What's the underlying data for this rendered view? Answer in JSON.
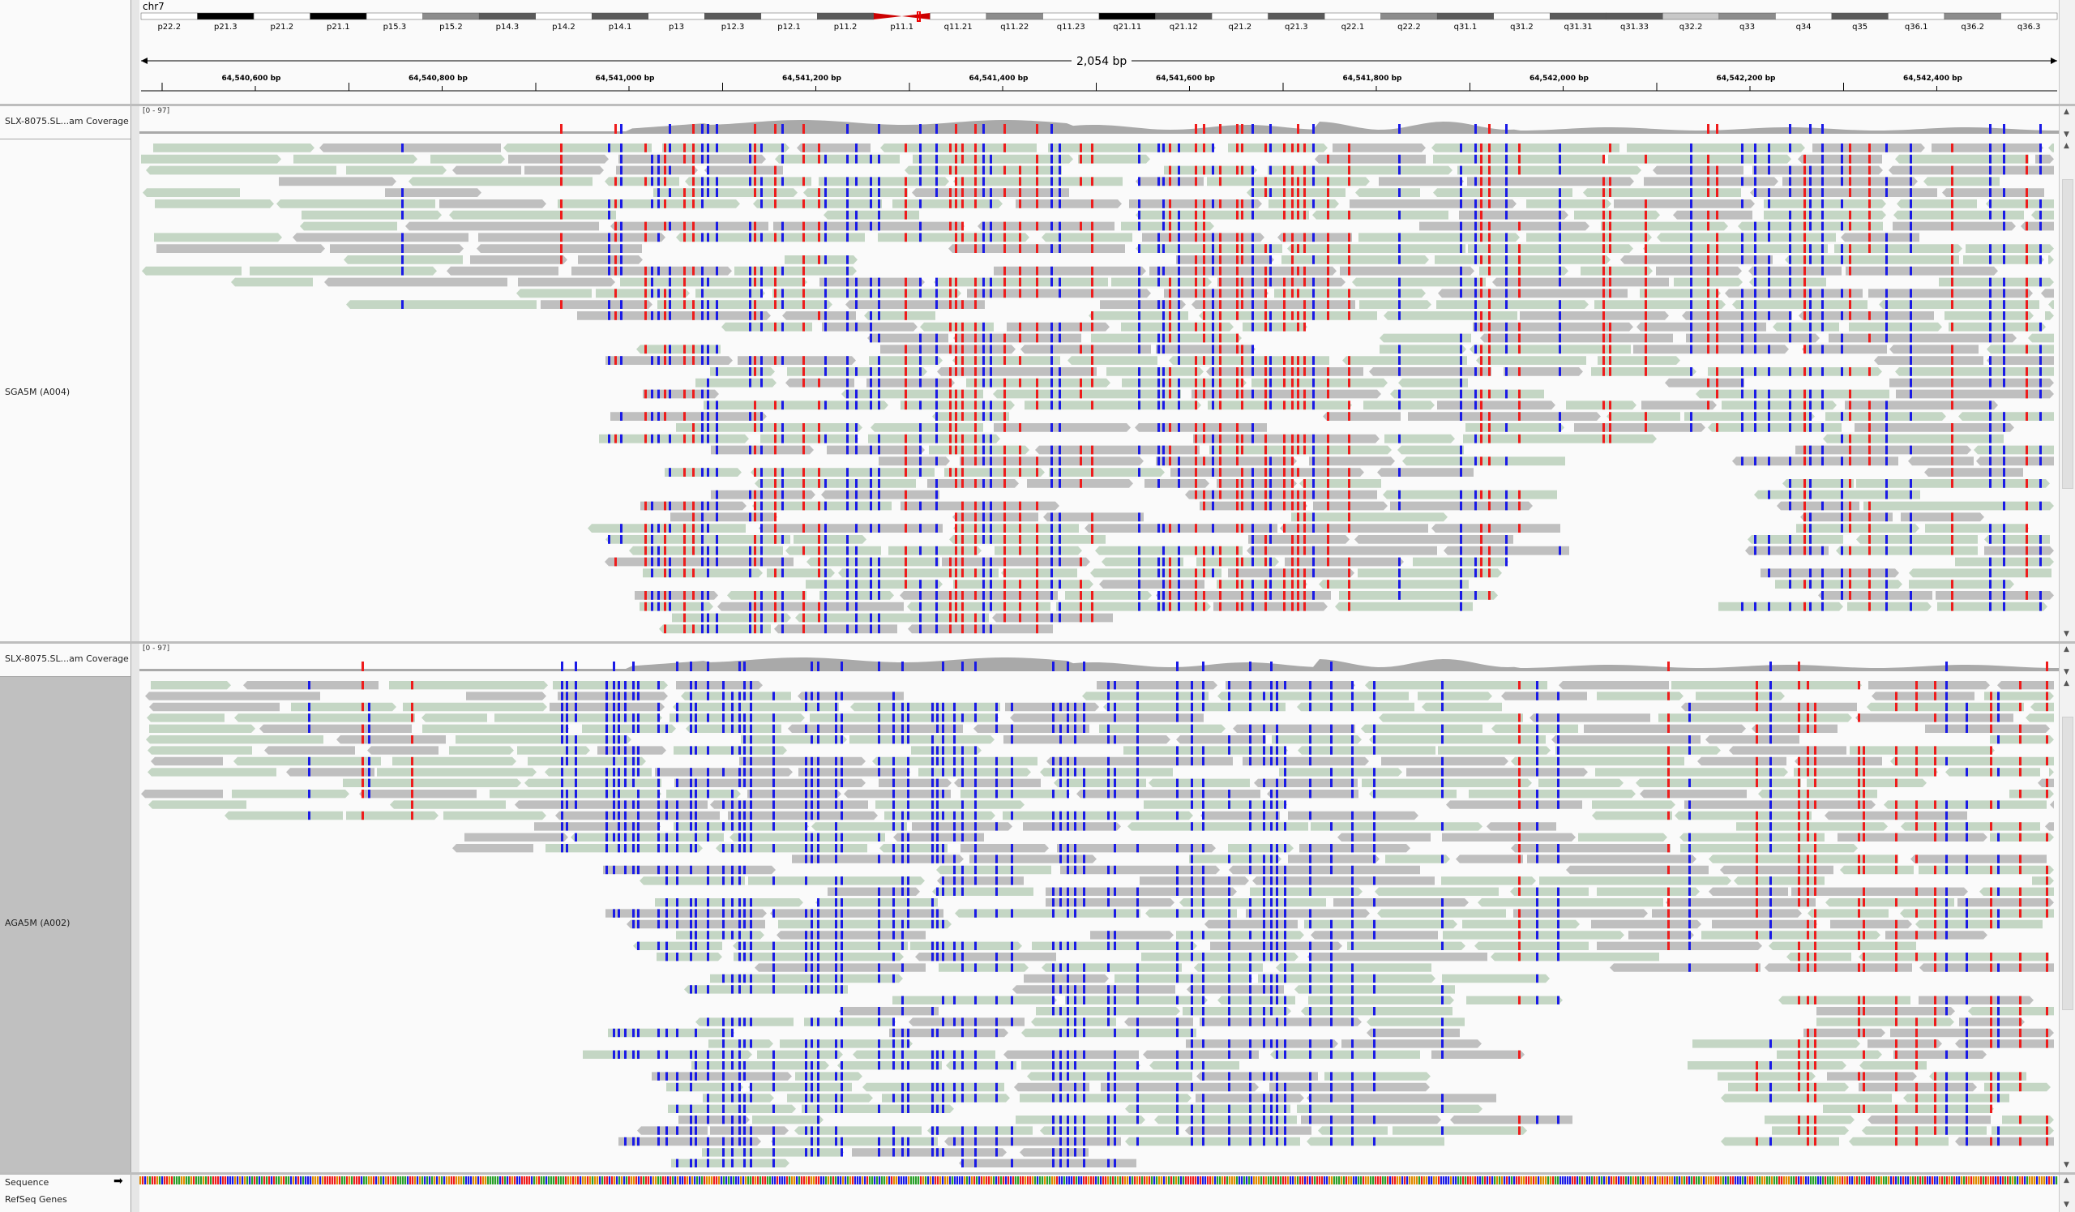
{
  "header": {
    "chromosome": "chr7",
    "span_label": "2,054 bp",
    "cytobands": [
      "p22.2",
      "p21.3",
      "p21.2",
      "p21.1",
      "p15.3",
      "p15.2",
      "p14.3",
      "p14.2",
      "p14.1",
      "p13",
      "p12.3",
      "p12.1",
      "p11.2",
      "p11.1",
      "q11.21",
      "q11.22",
      "q11.23",
      "q21.11",
      "q21.12",
      "q21.2",
      "q21.3",
      "q22.1",
      "q22.2",
      "q31.1",
      "q31.2",
      "q31.31",
      "q31.33",
      "q32.2",
      "q33",
      "q34",
      "q35",
      "q36.1",
      "q36.2",
      "q36.3"
    ],
    "ruler_ticks": [
      "64,540,600 bp",
      "64,540,800 bp",
      "64,541,000 bp",
      "64,541,200 bp",
      "64,541,400 bp",
      "64,541,600 bp",
      "64,541,800 bp",
      "64,542,000 bp",
      "64,542,200 bp",
      "64,542,400 bp"
    ]
  },
  "tracks": {
    "coverage1": {
      "name": "SLX-8075.SL...am Coverage",
      "range": "[0 - 97]"
    },
    "alignment1": {
      "name": "SGA5M (A004)"
    },
    "coverage2": {
      "name": "SLX-8075.SL...am Coverage",
      "range": "[0 - 97]"
    },
    "alignment2": {
      "name": "AGA5M (A002)"
    },
    "sequence": {
      "name": "Sequence"
    },
    "genes": {
      "name": "RefSeq Genes"
    }
  },
  "colors": {
    "read_default": "#bfbfbf",
    "read_soft": "#c4d6c4",
    "mismatch_a": "#ee1c1c",
    "mismatch_b": "#1a1ae6",
    "coverage": "#a9a9a9",
    "selected_name_bg": "#c0c0c0"
  },
  "icons": {
    "strand_arrow": "right-arrow-icon",
    "scroll_up": "scroll-up-icon",
    "scroll_down": "scroll-down-icon"
  }
}
